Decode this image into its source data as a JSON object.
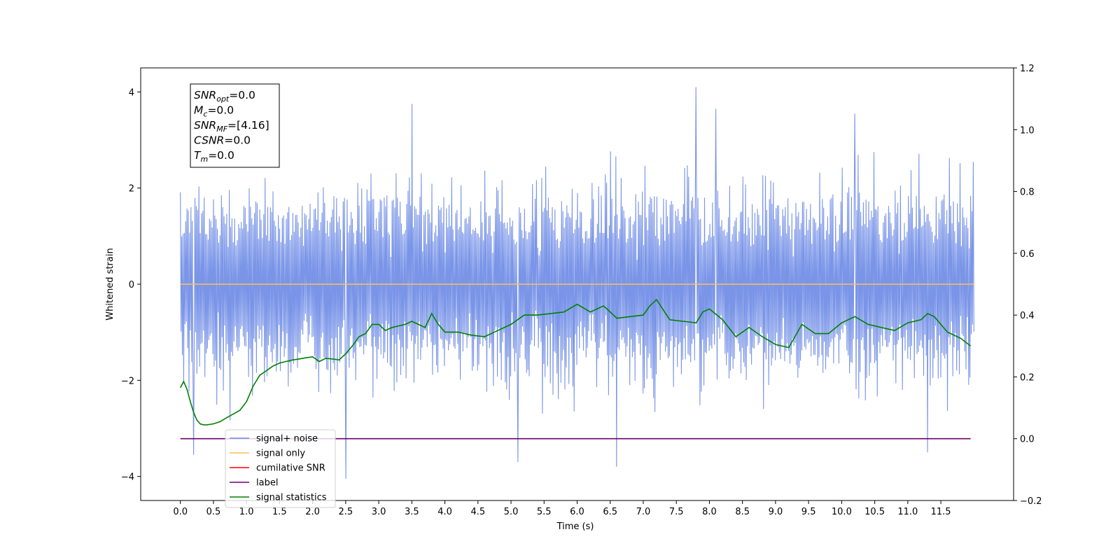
{
  "chart_data": {
    "type": "line",
    "title": "",
    "xlabel": "Time (s)",
    "ylabel": "Whitened strain",
    "xlim": [
      -0.6,
      12.6
    ],
    "ylim": [
      -4.5,
      4.5
    ],
    "y2lim": [
      -0.2,
      1.2
    ],
    "x_ticks": [
      0.0,
      0.5,
      1.0,
      1.5,
      2.0,
      2.5,
      3.0,
      3.5,
      4.0,
      4.5,
      5.0,
      5.5,
      6.0,
      6.5,
      7.0,
      7.5,
      8.0,
      8.5,
      9.0,
      9.5,
      10.0,
      10.5,
      11.0,
      11.5
    ],
    "x_tick_labels": [
      "0.0",
      "0.5",
      "1.0",
      "1.5",
      "2.0",
      "2.5",
      "3.0",
      "3.5",
      "4.0",
      "4.5",
      "5.0",
      "5.5",
      "6.0",
      "6.5",
      "7.0",
      "7.5",
      "8.0",
      "8.5",
      "9.0",
      "9.5",
      "10.0",
      "10.5",
      "11.0",
      "11.5"
    ],
    "y_ticks": [
      -4,
      -2,
      0,
      2,
      4
    ],
    "y_tick_labels": [
      "−4",
      "−2",
      "0",
      "2",
      "4"
    ],
    "y2_ticks": [
      -0.2,
      0.0,
      0.2,
      0.4,
      0.6,
      0.8,
      1.0,
      1.2
    ],
    "y2_tick_labels": [
      "−0.2",
      "0.0",
      "0.2",
      "0.4",
      "0.6",
      "0.8",
      "1.0",
      "1.2"
    ],
    "grid": false,
    "legend": {
      "placement": "lower-left",
      "entries": [
        {
          "name": "signal+ noise",
          "color": "#6b8ae6"
        },
        {
          "name": "signal only",
          "color": "#ffbe5c"
        },
        {
          "name": "cumilative SNR",
          "color": "#ff0000"
        },
        {
          "name": "label",
          "color": "#6a006a"
        },
        {
          "name": "signal statistics",
          "color": "#008000"
        }
      ]
    },
    "series": [
      {
        "name": "signal+ noise",
        "axis": "left",
        "color": "#6b8ae6",
        "x_range": [
          0.0,
          12.0
        ],
        "sample_count": 1200,
        "approx_range": [
          -4.1,
          4.1
        ],
        "peaks": [
          {
            "x": 7.8,
            "y": 4.1
          },
          {
            "x": 3.5,
            "y": 3.75
          },
          {
            "x": 8.1,
            "y": 3.65
          },
          {
            "x": 10.2,
            "y": 3.55
          },
          {
            "x": 2.5,
            "y": -4.05
          },
          {
            "x": 6.6,
            "y": -3.8
          },
          {
            "x": 5.1,
            "y": -3.7
          },
          {
            "x": 0.2,
            "y": -3.55
          },
          {
            "x": 11.3,
            "y": -3.5
          }
        ]
      },
      {
        "name": "signal only",
        "axis": "left",
        "color": "#ffbe5c",
        "x": [
          0.0,
          12.0
        ],
        "y": [
          0.0,
          0.0
        ]
      },
      {
        "name": "label",
        "axis": "right",
        "color": "#6a006a",
        "x": [
          0.0,
          11.95
        ],
        "y": [
          0.0,
          0.0
        ]
      },
      {
        "name": "signal statistics",
        "axis": "right",
        "color": "#008000",
        "x": [
          0.0,
          0.05,
          0.1,
          0.15,
          0.2,
          0.25,
          0.3,
          0.35,
          0.4,
          0.5,
          0.6,
          0.7,
          0.8,
          0.9,
          1.0,
          1.1,
          1.2,
          1.3,
          1.4,
          1.5,
          1.6,
          1.7,
          1.8,
          1.9,
          2.0,
          2.1,
          2.2,
          2.3,
          2.4,
          2.5,
          2.6,
          2.7,
          2.8,
          2.9,
          3.0,
          3.1,
          3.2,
          3.3,
          3.4,
          3.5,
          3.6,
          3.7,
          3.8,
          3.9,
          4.0,
          4.2,
          4.4,
          4.6,
          4.8,
          5.0,
          5.2,
          5.4,
          5.6,
          5.8,
          6.0,
          6.2,
          6.4,
          6.6,
          6.8,
          7.0,
          7.1,
          7.2,
          7.4,
          7.6,
          7.8,
          7.9,
          8.0,
          8.2,
          8.4,
          8.6,
          8.8,
          9.0,
          9.2,
          9.4,
          9.6,
          9.8,
          10.0,
          10.2,
          10.4,
          10.6,
          10.8,
          11.0,
          11.2,
          11.3,
          11.4,
          11.6,
          11.8,
          11.95
        ],
        "y": [
          0.165,
          0.185,
          0.16,
          0.12,
          0.085,
          0.06,
          0.048,
          0.045,
          0.045,
          0.048,
          0.055,
          0.068,
          0.08,
          0.092,
          0.12,
          0.17,
          0.205,
          0.22,
          0.235,
          0.245,
          0.25,
          0.255,
          0.258,
          0.262,
          0.265,
          0.25,
          0.26,
          0.258,
          0.255,
          0.275,
          0.3,
          0.33,
          0.34,
          0.37,
          0.37,
          0.35,
          0.36,
          0.365,
          0.37,
          0.38,
          0.37,
          0.36,
          0.405,
          0.37,
          0.345,
          0.345,
          0.335,
          0.33,
          0.35,
          0.37,
          0.4,
          0.4,
          0.405,
          0.41,
          0.435,
          0.41,
          0.43,
          0.39,
          0.395,
          0.4,
          0.43,
          0.45,
          0.385,
          0.38,
          0.375,
          0.41,
          0.42,
          0.385,
          0.33,
          0.36,
          0.33,
          0.305,
          0.295,
          0.37,
          0.34,
          0.34,
          0.375,
          0.395,
          0.37,
          0.36,
          0.35,
          0.375,
          0.385,
          0.405,
          0.395,
          0.345,
          0.325,
          0.3
        ]
      }
    ],
    "annotation": {
      "lines": [
        {
          "base": "SNR",
          "sub": "opt",
          "rest": "=0.0"
        },
        {
          "base": "M",
          "sub": "c",
          "rest": "=0.0"
        },
        {
          "base": "SNR",
          "sub": "MF",
          "rest": "=[4.16]"
        },
        {
          "base": "CSNR",
          "sub": "",
          "rest": "=0.0"
        },
        {
          "base": "T",
          "sub": "m",
          "rest": "=0.0"
        }
      ]
    }
  }
}
